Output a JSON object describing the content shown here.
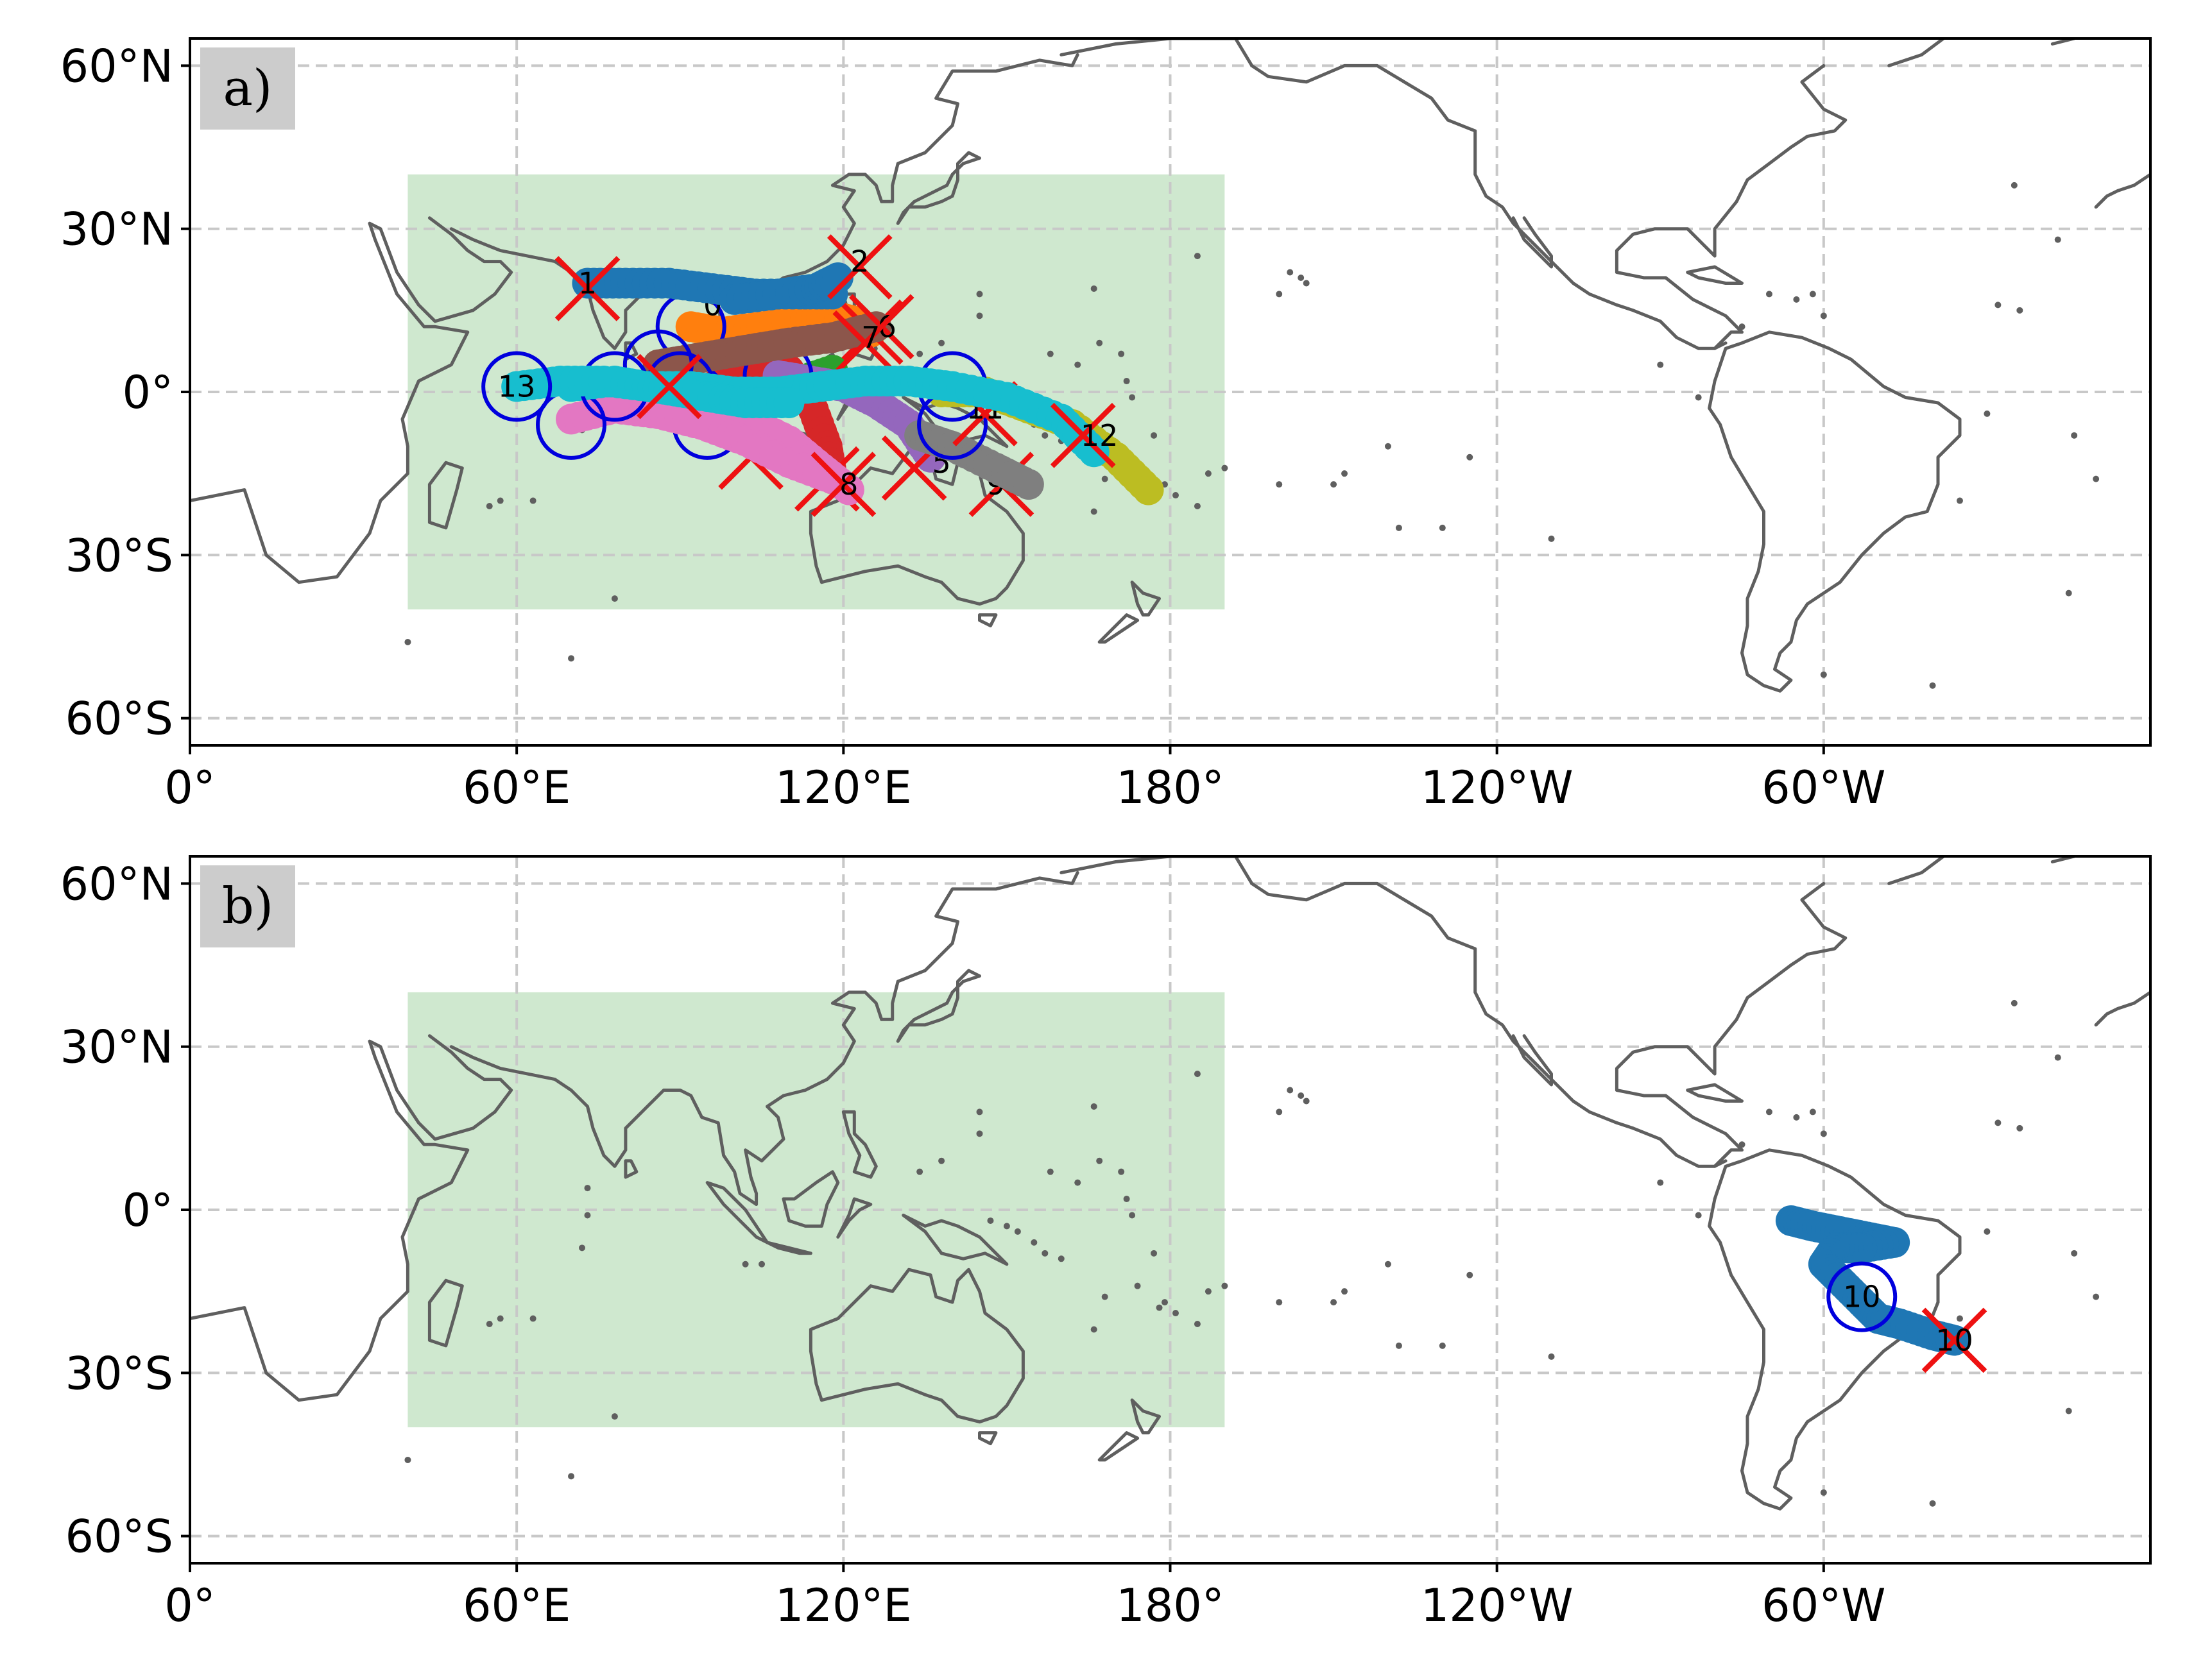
{
  "x_ticks": [
    "0°",
    "60°E",
    "120°E",
    "180°",
    "120°W",
    "60°W"
  ],
  "y_ticks": [
    "60°N",
    "30°N",
    "0°",
    "30°S",
    "60°S"
  ],
  "colors": {
    "region": "#a8d5a8",
    "coast": "#5f5f5f",
    "grid": "#c8c8c8",
    "genesis_marker": "#0000dd",
    "lysis_marker": "#ee1111",
    "panel_label_bg": "#cccccc"
  },
  "panels": [
    {
      "label": "a)",
      "region_box": {
        "lon": [
          40,
          190
        ],
        "lat": [
          -40,
          40
        ]
      },
      "tracks": [
        {
          "id": "0",
          "color": "#ff7f0e",
          "pts": [
            [
              92,
              12
            ],
            [
              98,
              11
            ],
            [
              105,
              12
            ],
            [
              112,
              13
            ],
            [
              118,
              14
            ],
            [
              122,
              13
            ],
            [
              125,
              11
            ]
          ],
          "genesis": [
            92,
            12
          ],
          "lysis": [
            125,
            11
          ],
          "label_at": [
            96,
            16
          ]
        },
        {
          "id": "1",
          "color": "#1f77b4",
          "pts": [
            [
              73,
              20
            ],
            [
              80,
              20
            ],
            [
              88,
              20
            ],
            [
              96,
              19
            ],
            [
              104,
              18
            ],
            [
              112,
              18
            ],
            [
              118,
              18
            ]
          ],
          "genesis": null,
          "lysis": [
            73,
            19
          ],
          "label_at": [
            73,
            20
          ]
        },
        {
          "id": "2",
          "color": "#1f77b4",
          "pts": [
            [
              100,
              17
            ],
            [
              108,
              18
            ],
            [
              115,
              19
            ],
            [
              119,
              21
            ]
          ],
          "genesis": null,
          "lysis": [
            123,
            23
          ],
          "label_at": [
            123,
            24
          ]
        },
        {
          "id": "3",
          "color": "#2ca02c",
          "pts": [
            [
              96,
              -5
            ],
            [
              100,
              -3
            ],
            [
              106,
              0
            ],
            [
              112,
              2
            ],
            [
              118,
              4
            ]
          ],
          "genesis": [
            95,
            -6
          ],
          "lysis": [
            103,
            -12
          ],
          "label_at": [
            95,
            -5
          ]
        },
        {
          "id": "4",
          "color": "#d62728",
          "pts": [
            [
              92,
              -1
            ],
            [
              98,
              2
            ],
            [
              104,
              5
            ],
            [
              110,
              4
            ],
            [
              114,
              -2
            ],
            [
              117,
              -10
            ],
            [
              118,
              -16
            ]
          ],
          "genesis": [
            92,
            -1
          ],
          "lysis": [
            117,
            -16
          ],
          "label_at": [
            118,
            -16
          ]
        },
        {
          "id": "5",
          "color": "#9467bd",
          "pts": [
            [
              108,
              3
            ],
            [
              114,
              2
            ],
            [
              120,
              1
            ],
            [
              126,
              -2
            ],
            [
              132,
              -6
            ],
            [
              136,
              -12
            ]
          ],
          "genesis": [
            108,
            3
          ],
          "lysis": [
            133,
            -14
          ],
          "label_at": [
            138,
            -13
          ]
        },
        {
          "id": "6",
          "color": "#8c564b",
          "pts": [
            [
              86,
              5
            ],
            [
              92,
              6
            ],
            [
              98,
              7
            ],
            [
              104,
              8
            ],
            [
              110,
              9
            ],
            [
              118,
              10
            ],
            [
              126,
              12
            ]
          ],
          "genesis": [
            86,
            5
          ],
          "lysis": [
            127,
            12
          ],
          "label_at": [
            128,
            12
          ]
        },
        {
          "id": "7",
          "color": "#e377c2",
          "pts": [
            [
              90,
              0
            ],
            [
              95,
              -2
            ],
            [
              102,
              -5
            ],
            [
              110,
              -9
            ],
            [
              116,
              -14
            ],
            [
              121,
              -18
            ]
          ],
          "genesis": [
            90,
            1
          ],
          "lysis": [
            124,
            9
          ],
          "label_at": [
            125,
            10
          ]
        },
        {
          "id": "8",
          "color": "#e377c2",
          "pts": [
            [
              70,
              -5
            ],
            [
              78,
              -3
            ],
            [
              86,
              -4
            ],
            [
              94,
              -6
            ],
            [
              102,
              -9
            ],
            [
              110,
              -13
            ],
            [
              118,
              -16
            ]
          ],
          "genesis": [
            70,
            -6
          ],
          "lysis": [
            120,
            -17
          ],
          "label_at": [
            121,
            -17
          ]
        },
        {
          "id": "9",
          "color": "#bcbd22",
          "pts": [
            [
              138,
              0
            ],
            [
              146,
              0
            ],
            [
              154,
              -3
            ],
            [
              162,
              -6
            ],
            [
              170,
              -12
            ],
            [
              176,
              -18
            ]
          ],
          "genesis": [
            140,
            1
          ],
          "lysis": [
            149,
            -17
          ],
          "label_at": [
            148,
            -17
          ]
        },
        {
          "id": "11",
          "color": "#7f7f7f",
          "pts": [
            [
              134,
              -8
            ],
            [
              140,
              -10
            ],
            [
              148,
              -14
            ],
            [
              154,
              -17
            ]
          ],
          "genesis": [
            140,
            -6
          ],
          "lysis": [
            146,
            -4
          ],
          "label_at": [
            146,
            -3
          ]
        },
        {
          "id": "12",
          "color": "#17becf",
          "pts": [
            [
              70,
              1
            ],
            [
              78,
              2
            ],
            [
              84,
              1
            ],
            [
              92,
              1
            ],
            [
              100,
              0
            ],
            [
              108,
              0
            ],
            [
              116,
              1
            ],
            [
              124,
              2
            ],
            [
              132,
              2
            ],
            [
              140,
              1
            ],
            [
              150,
              -1
            ],
            [
              160,
              -5
            ],
            [
              166,
              -11
            ]
          ],
          "genesis": [
            78,
            1
          ],
          "lysis": [
            164,
            -8
          ],
          "label_at": [
            167,
            -8
          ]
        },
        {
          "id": "13",
          "color": "#17becf",
          "pts": [
            [
              60,
              1
            ],
            [
              68,
              2
            ],
            [
              76,
              2
            ],
            [
              84,
              1
            ],
            [
              90,
              0
            ],
            [
              96,
              -1
            ],
            [
              102,
              -2
            ],
            [
              110,
              -2
            ]
          ],
          "genesis": [
            60,
            1
          ],
          "lysis": [
            88,
            1
          ],
          "label_at": [
            60,
            1
          ]
        }
      ]
    },
    {
      "label": "b)",
      "region_box": {
        "lon": [
          40,
          190
        ],
        "lat": [
          -40,
          40
        ]
      },
      "tracks": [
        {
          "id": "10",
          "color": "#1f77b4",
          "pts": [
            [
              -66,
              -2
            ],
            [
              -62,
              -3
            ],
            [
              -57,
              -4
            ],
            [
              -52,
              -5
            ],
            [
              -47,
              -6
            ],
            [
              -53,
              -7
            ],
            [
              -58,
              -7
            ],
            [
              -60,
              -10
            ],
            [
              -57,
              -13
            ],
            [
              -53,
              -17
            ],
            [
              -50,
              -20
            ],
            [
              -46,
              -21
            ],
            [
              -40,
              -23
            ],
            [
              -36,
              -24
            ]
          ],
          "genesis": [
            -53,
            -16
          ],
          "lysis": [
            -36,
            -24
          ],
          "label_at": [
            -53,
            -16
          ],
          "label2_at": [
            -36,
            -24
          ]
        }
      ]
    }
  ]
}
